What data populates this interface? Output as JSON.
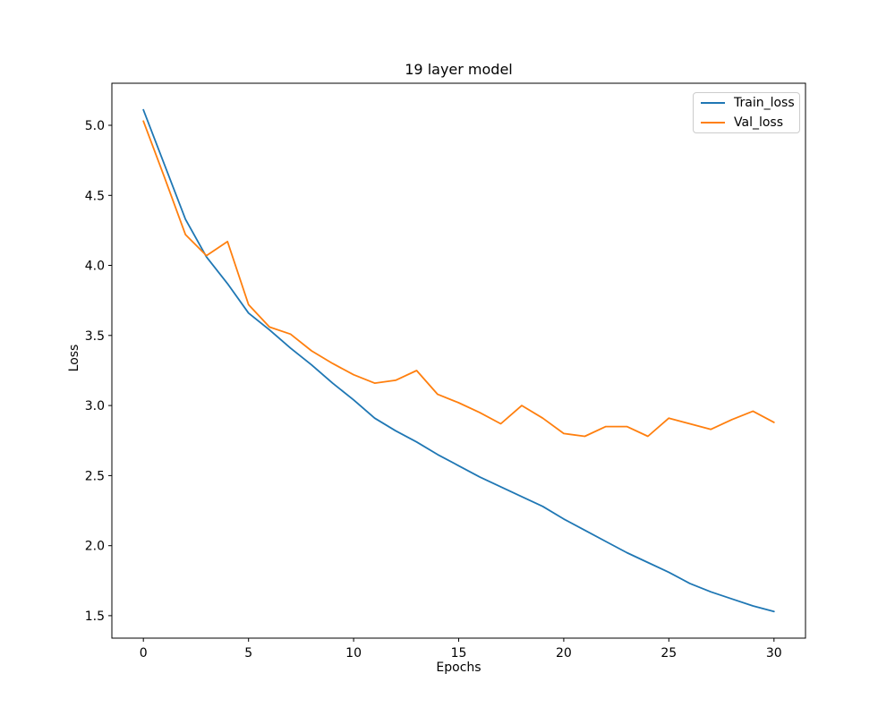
{
  "chart_data": {
    "type": "line",
    "title": "19 layer model",
    "xlabel": "Epochs",
    "ylabel": "Loss",
    "x": [
      0,
      1,
      2,
      3,
      4,
      5,
      6,
      7,
      8,
      9,
      10,
      11,
      12,
      13,
      14,
      15,
      16,
      17,
      18,
      19,
      20,
      21,
      22,
      23,
      24,
      25,
      26,
      27,
      28,
      29,
      30
    ],
    "series": [
      {
        "name": "Train_loss",
        "color": "#1f77b4",
        "values": [
          5.11,
          4.72,
          4.33,
          4.06,
          3.87,
          3.66,
          3.54,
          3.41,
          3.29,
          3.16,
          3.04,
          2.91,
          2.82,
          2.74,
          2.65,
          2.57,
          2.49,
          2.42,
          2.35,
          2.28,
          2.19,
          2.11,
          2.03,
          1.95,
          1.88,
          1.81,
          1.73,
          1.67,
          1.62,
          1.57,
          1.53
        ]
      },
      {
        "name": "Val_loss",
        "color": "#ff7f0e",
        "values": [
          5.03,
          4.63,
          4.22,
          4.07,
          4.17,
          3.72,
          3.56,
          3.51,
          3.39,
          3.3,
          3.22,
          3.16,
          3.18,
          3.25,
          3.08,
          3.02,
          2.95,
          2.87,
          3.0,
          2.91,
          2.8,
          2.78,
          2.85,
          2.85,
          2.78,
          2.91,
          2.87,
          2.83,
          2.9,
          2.96,
          2.88
        ]
      }
    ],
    "xticks": [
      0,
      5,
      10,
      15,
      20,
      25,
      30
    ],
    "yticks": [
      1.5,
      2.0,
      2.5,
      3.0,
      3.5,
      4.0,
      4.5,
      5.0
    ],
    "xlim": [
      -1.5,
      31.5
    ],
    "ylim": [
      1.34,
      5.3
    ],
    "grid": false,
    "legend_position": "upper right",
    "line_width": 1.8,
    "spine_color": "#000000",
    "background_color": "#ffffff"
  }
}
